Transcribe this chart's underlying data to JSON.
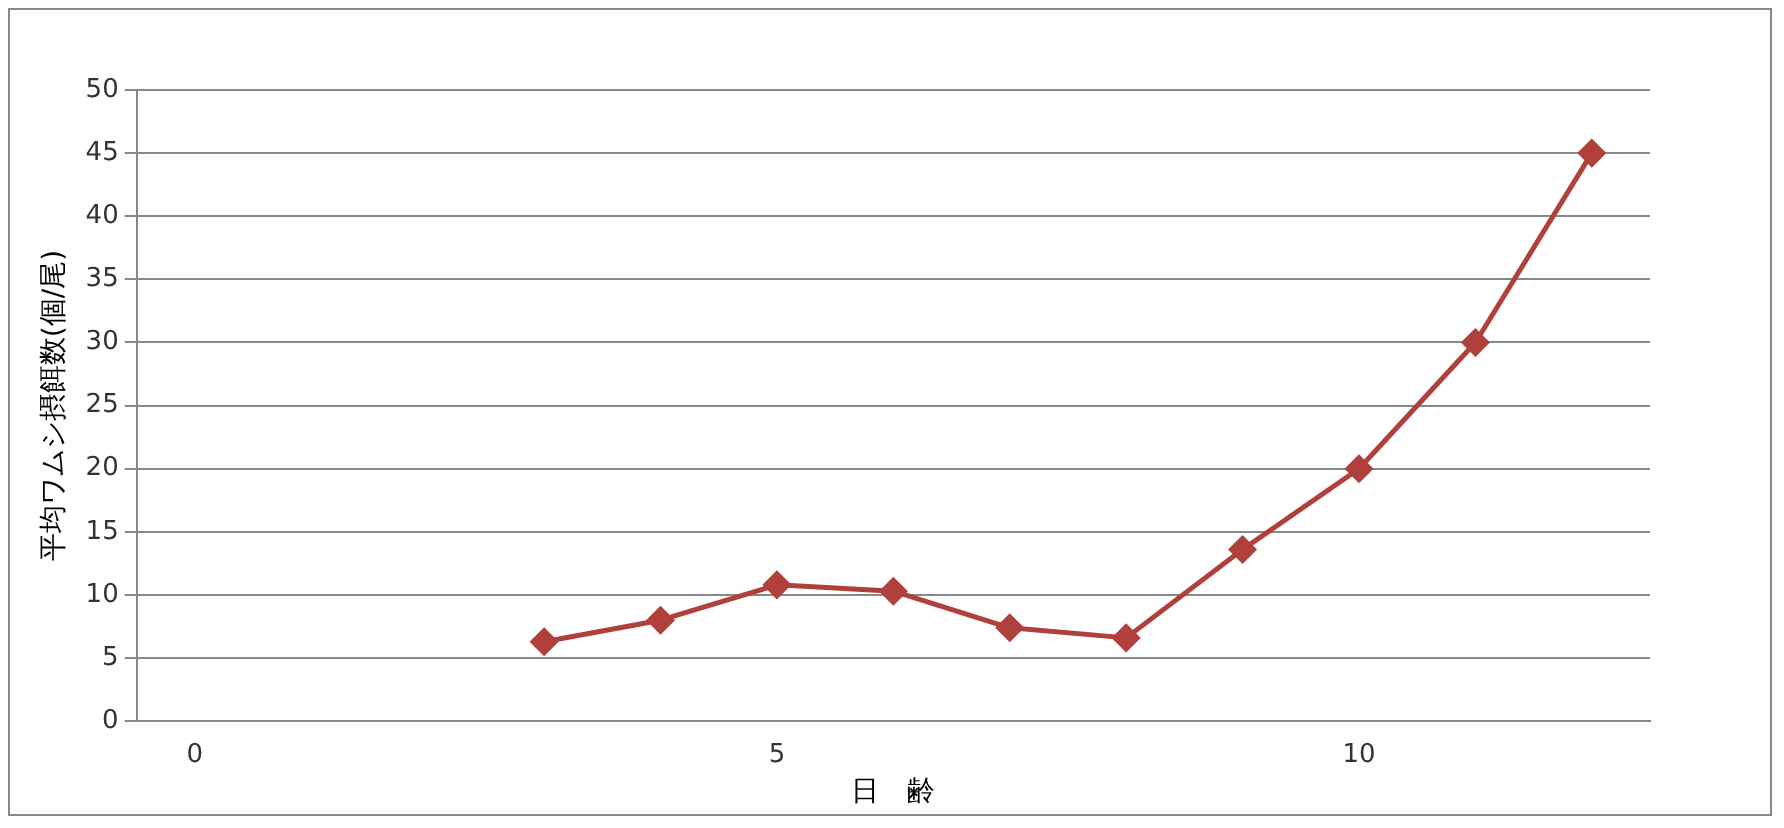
{
  "chart_data": {
    "type": "line",
    "xlabel": "日　齢",
    "ylabel": "平均ワムシ摂餌数(個/尾)",
    "categories": [
      "0",
      null,
      null,
      null,
      null,
      "5",
      null,
      null,
      null,
      null,
      "10",
      null,
      null
    ],
    "series": [
      {
        "color": "#b0403c",
        "values": [
          null,
          null,
          null,
          6.3,
          8,
          10.8,
          10.3,
          7.4,
          6.6,
          13.6,
          20,
          30,
          45
        ]
      }
    ],
    "ylim": [
      0,
      50
    ],
    "yticks": [
      0,
      5,
      10,
      15,
      20,
      25,
      30,
      35,
      40,
      45,
      50
    ],
    "grid": "y",
    "legend": false,
    "marker": "diamond",
    "line_style": "solid"
  }
}
